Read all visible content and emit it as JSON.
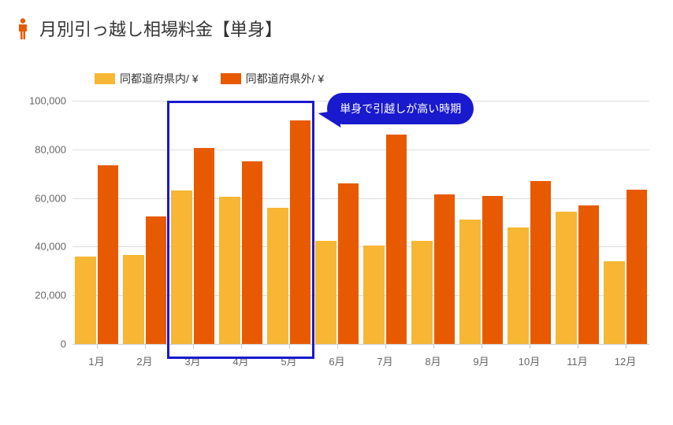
{
  "title": "月別引っ越し相場料金【単身】",
  "icon_color": "#e85a00",
  "legend": {
    "series1": {
      "label": "同都道府県内/ ¥",
      "color": "#f7b633"
    },
    "series2": {
      "label": "同都道府県外/ ¥",
      "color": "#e85a00"
    }
  },
  "chart": {
    "type": "bar",
    "categories": [
      "1月",
      "2月",
      "3月",
      "4月",
      "5月",
      "6月",
      "7月",
      "8月",
      "9月",
      "10月",
      "11月",
      "12月"
    ],
    "series1_values": [
      36000,
      36500,
      63000,
      60500,
      56000,
      42500,
      40500,
      42500,
      51000,
      48000,
      54500,
      34000
    ],
    "series2_values": [
      73500,
      52500,
      80500,
      75000,
      92000,
      66000,
      86000,
      61500,
      61000,
      67000,
      57000,
      63500
    ],
    "ylim": [
      0,
      100000
    ],
    "ytick_step": 20000,
    "yticks": [
      "0",
      "20,000",
      "40,000",
      "60,000",
      "80,000",
      "100,000"
    ],
    "bar_colors": [
      "#f7b633",
      "#e85a00"
    ],
    "grid_color": "#dddddd",
    "axis_color": "#cccccc",
    "label_fontsize": 13,
    "title_fontsize": 22
  },
  "highlight": {
    "start_index": 2,
    "end_index": 4,
    "border_color": "#1919ce"
  },
  "callout": {
    "text": "単身で引越しが高い時期",
    "bg_color": "#1919ce",
    "text_color": "#ffffff"
  }
}
